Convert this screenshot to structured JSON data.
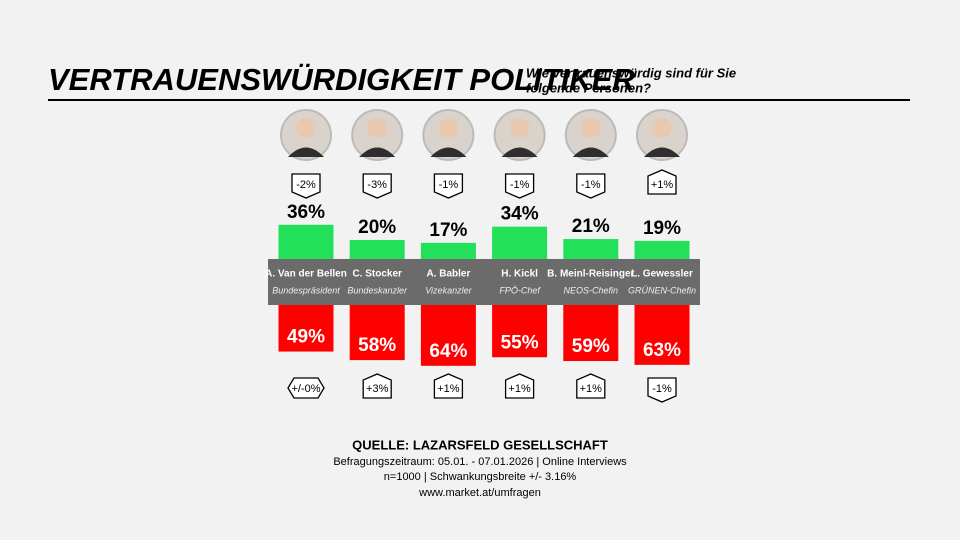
{
  "chart_data": {
    "type": "diverging-bar",
    "title": "VERTRAUENSWÜRDIGKEIT POLITIKER",
    "subtitle_lines": [
      "Wie vertrauenswürdig sind für Sie",
      "folgende Personen?"
    ],
    "categories": [
      "A. Van der Bellen",
      "C. Stocker",
      "A. Babler",
      "H. Kickl",
      "B. Meinl-Reisinger",
      "L. Gewessler"
    ],
    "roles": [
      "Bundespräsident",
      "Bundeskanzler",
      "Vizekanzler",
      "FPÖ-Chef",
      "NEOS-Chefin",
      "GRÜNEN-Chefin"
    ],
    "series": [
      {
        "color": "#22e05a",
        "values": [
          36,
          20,
          17,
          34,
          21,
          19
        ],
        "value_labels": [
          "36%",
          "20%",
          "17%",
          "34%",
          "21%",
          "19%"
        ],
        "change": [
          -2,
          -3,
          -1,
          -1,
          -1,
          1
        ],
        "change_labels": [
          "-2%",
          "-3%",
          "-1%",
          "-1%",
          "-1%",
          "+1%"
        ]
      },
      {
        "color": "#ff0000",
        "values": [
          49,
          58,
          64,
          55,
          59,
          63
        ],
        "value_labels": [
          "49%",
          "58%",
          "64%",
          "55%",
          "59%",
          "63%"
        ],
        "change": [
          0,
          3,
          1,
          1,
          1,
          -1
        ],
        "change_labels": [
          "+/-0%",
          "+3%",
          "+1%",
          "+1%",
          "+1%",
          "-1%"
        ]
      }
    ],
    "source": "QUELLE: LAZARSFELD GESELLSCHAFT",
    "notes": [
      "Befragungszeitraum: 05.01. - 07.01.2026 | Online Interviews",
      "n=1000  |  Schwankungsbreite +/- 3.16%",
      "www.market.at/umfragen"
    ]
  }
}
